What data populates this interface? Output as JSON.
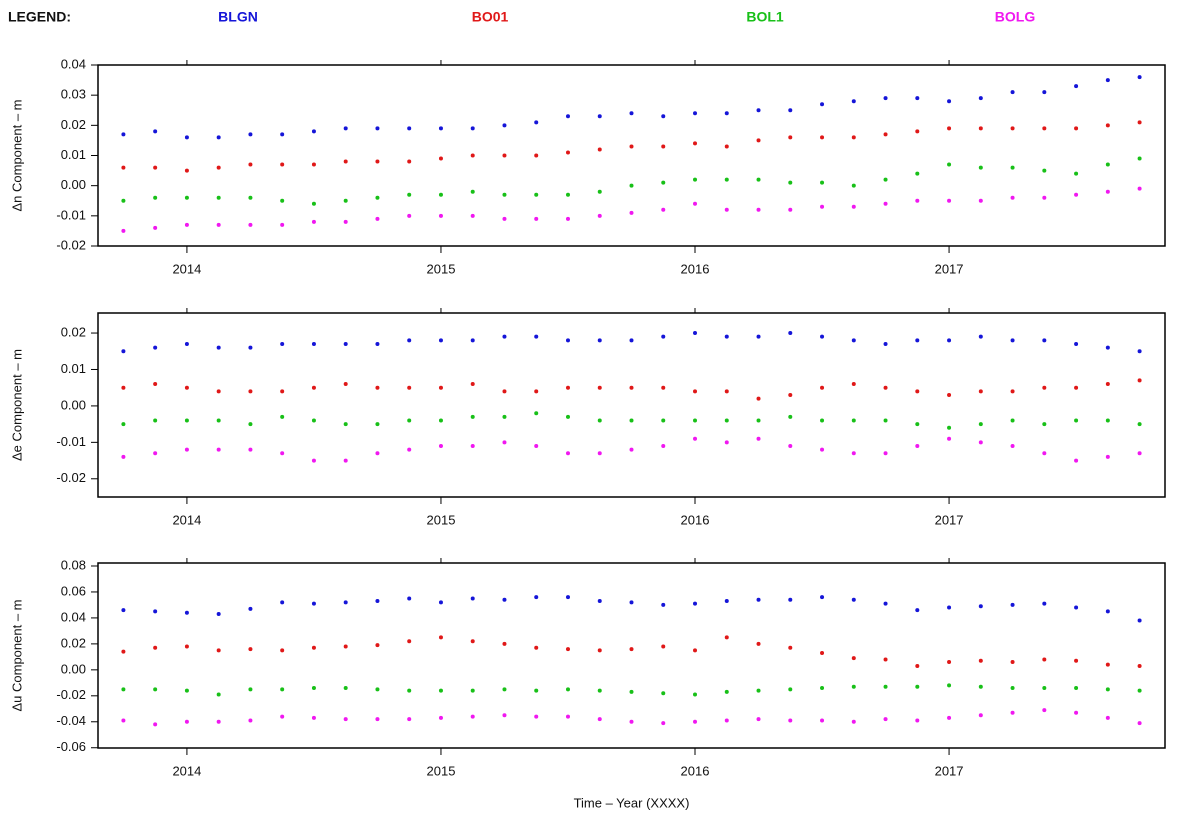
{
  "legend": {
    "title": "LEGEND:"
  },
  "chart_data": [
    {
      "type": "scatter",
      "ylabel": "Δn Component – m",
      "x": [
        2013.75,
        2013.875,
        2014.0,
        2014.125,
        2014.25,
        2014.375,
        2014.5,
        2014.625,
        2014.75,
        2014.875,
        2015.0,
        2015.125,
        2015.25,
        2015.375,
        2015.5,
        2015.625,
        2015.75,
        2015.875,
        2016.0,
        2016.125,
        2016.25,
        2016.375,
        2016.5,
        2016.625,
        2016.75,
        2016.875,
        2017.0,
        2017.125,
        2017.25,
        2017.375,
        2017.5,
        2017.625,
        2017.75
      ],
      "xlim": [
        2013.65,
        2017.85
      ],
      "xticks": [
        2014,
        2015,
        2016,
        2017
      ],
      "ylim": [
        -0.02,
        0.04
      ],
      "yticks": [
        0.04,
        0.03,
        0.02,
        0.01,
        {
          "value": 0,
          "label": "0.00"
        },
        -0.01,
        -0.02
      ],
      "series": [
        {
          "name": "BLGN",
          "color": "#1515d8",
          "values": [
            0.017,
            0.018,
            0.016,
            0.016,
            0.017,
            0.017,
            0.018,
            0.019,
            0.019,
            0.019,
            0.019,
            0.019,
            0.02,
            0.021,
            0.023,
            0.023,
            0.024,
            0.023,
            0.024,
            0.024,
            0.025,
            0.025,
            0.027,
            0.028,
            0.029,
            0.029,
            0.028,
            0.029,
            0.031,
            0.031,
            0.033,
            0.035,
            0.036
          ]
        },
        {
          "name": "BO01",
          "color": "#e01818",
          "values": [
            0.006,
            0.006,
            0.005,
            0.006,
            0.007,
            0.007,
            0.007,
            0.008,
            0.008,
            0.008,
            0.009,
            0.01,
            0.01,
            0.01,
            0.011,
            0.012,
            0.013,
            0.013,
            0.014,
            0.013,
            0.015,
            0.016,
            0.016,
            0.016,
            0.017,
            0.018,
            0.019,
            0.019,
            0.019,
            0.019,
            0.019,
            0.02,
            0.021
          ]
        },
        {
          "name": "BOL1",
          "color": "#18c018",
          "values": [
            -0.005,
            -0.004,
            -0.004,
            -0.004,
            -0.004,
            -0.005,
            -0.006,
            -0.005,
            -0.004,
            -0.003,
            -0.003,
            -0.002,
            -0.003,
            -0.003,
            -0.003,
            -0.002,
            0.0,
            0.001,
            0.002,
            0.002,
            0.002,
            0.001,
            0.001,
            0.0,
            0.002,
            0.004,
            0.007,
            0.006,
            0.006,
            0.005,
            0.004,
            0.007,
            0.009
          ]
        },
        {
          "name": "BOLG",
          "color": "#f018f0",
          "values": [
            -0.015,
            -0.014,
            -0.013,
            -0.013,
            -0.013,
            -0.013,
            -0.012,
            -0.012,
            -0.011,
            -0.01,
            -0.01,
            -0.01,
            -0.011,
            -0.011,
            -0.011,
            -0.01,
            -0.009,
            -0.008,
            -0.006,
            -0.008,
            -0.008,
            -0.008,
            -0.007,
            -0.007,
            -0.006,
            -0.005,
            -0.005,
            -0.005,
            -0.004,
            -0.004,
            -0.003,
            -0.002,
            -0.001
          ]
        }
      ]
    },
    {
      "type": "scatter",
      "ylabel": "Δe Component – m",
      "x": [
        2013.75,
        2013.875,
        2014.0,
        2014.125,
        2014.25,
        2014.375,
        2014.5,
        2014.625,
        2014.75,
        2014.875,
        2015.0,
        2015.125,
        2015.25,
        2015.375,
        2015.5,
        2015.625,
        2015.75,
        2015.875,
        2016.0,
        2016.125,
        2016.25,
        2016.375,
        2016.5,
        2016.625,
        2016.75,
        2016.875,
        2017.0,
        2017.125,
        2017.25,
        2017.375,
        2017.5,
        2017.625,
        2017.75
      ],
      "xlim": [
        2013.65,
        2017.85
      ],
      "xticks": [
        2014,
        2015,
        2016,
        2017
      ],
      "ylim": [
        -0.025,
        0.0255
      ],
      "yticks": [
        0.02,
        0.01,
        {
          "value": 0,
          "label": "0.00"
        },
        -0.01,
        -0.02
      ],
      "series": [
        {
          "color": "#1515d8",
          "values": [
            0.015,
            0.016,
            0.017,
            0.016,
            0.016,
            0.017,
            0.017,
            0.017,
            0.017,
            0.018,
            0.018,
            0.018,
            0.019,
            0.019,
            0.018,
            0.018,
            0.018,
            0.019,
            0.02,
            0.019,
            0.019,
            0.02,
            0.019,
            0.018,
            0.017,
            0.018,
            0.018,
            0.019,
            0.018,
            0.018,
            0.017,
            0.016,
            0.015
          ]
        },
        {
          "color": "#e01818",
          "values": [
            0.005,
            0.006,
            0.005,
            0.004,
            0.004,
            0.004,
            0.005,
            0.006,
            0.005,
            0.005,
            0.005,
            0.006,
            0.004,
            0.004,
            0.005,
            0.005,
            0.005,
            0.005,
            0.004,
            0.004,
            0.002,
            0.003,
            0.005,
            0.006,
            0.005,
            0.004,
            0.003,
            0.004,
            0.004,
            0.005,
            0.005,
            0.006,
            0.007
          ]
        },
        {
          "color": "#18c018",
          "values": [
            -0.005,
            -0.004,
            -0.004,
            -0.004,
            -0.005,
            -0.003,
            -0.004,
            -0.005,
            -0.005,
            -0.004,
            -0.004,
            -0.003,
            -0.003,
            -0.002,
            -0.003,
            -0.004,
            -0.004,
            -0.004,
            -0.004,
            -0.004,
            -0.004,
            -0.003,
            -0.004,
            -0.004,
            -0.004,
            -0.005,
            -0.006,
            -0.005,
            -0.004,
            -0.005,
            -0.004,
            -0.004,
            -0.005
          ]
        },
        {
          "color": "#f018f0",
          "values": [
            -0.014,
            -0.013,
            -0.012,
            -0.012,
            -0.012,
            -0.013,
            -0.015,
            -0.015,
            -0.013,
            -0.012,
            -0.011,
            -0.011,
            -0.01,
            -0.011,
            -0.013,
            -0.013,
            -0.012,
            -0.011,
            -0.009,
            -0.01,
            -0.009,
            -0.011,
            -0.012,
            -0.013,
            -0.013,
            -0.011,
            -0.009,
            -0.01,
            -0.011,
            -0.013,
            -0.015,
            -0.014,
            -0.013
          ]
        }
      ]
    },
    {
      "type": "scatter",
      "ylabel": "Δu Component – m",
      "xlabel": "Time – Year (XXXX)",
      "x": [
        2013.75,
        2013.875,
        2014.0,
        2014.125,
        2014.25,
        2014.375,
        2014.5,
        2014.625,
        2014.75,
        2014.875,
        2015.0,
        2015.125,
        2015.25,
        2015.375,
        2015.5,
        2015.625,
        2015.75,
        2015.875,
        2016.0,
        2016.125,
        2016.25,
        2016.375,
        2016.5,
        2016.625,
        2016.75,
        2016.875,
        2017.0,
        2017.125,
        2017.25,
        2017.375,
        2017.5,
        2017.625,
        2017.75
      ],
      "xlim": [
        2013.65,
        2017.85
      ],
      "xticks": [
        2014,
        2015,
        2016,
        2017
      ],
      "ylim": [
        -0.0602,
        0.0823
      ],
      "yticks": [
        {
          "value": 0.08,
          "label": "0.08"
        },
        0.06,
        0.04,
        0.02,
        {
          "value": 0,
          "label": "0.00"
        },
        -0.02,
        -0.04,
        -0.06
      ],
      "series": [
        {
          "color": "#1515d8",
          "values": [
            0.046,
            0.045,
            0.044,
            0.043,
            0.047,
            0.052,
            0.051,
            0.052,
            0.053,
            0.055,
            0.052,
            0.055,
            0.054,
            0.056,
            0.056,
            0.053,
            0.052,
            0.05,
            0.051,
            0.053,
            0.054,
            0.054,
            0.056,
            0.054,
            0.051,
            0.046,
            0.048,
            0.049,
            0.05,
            0.051,
            0.048,
            0.045,
            0.038
          ]
        },
        {
          "color": "#e01818",
          "values": [
            0.014,
            0.017,
            0.018,
            0.015,
            0.016,
            0.015,
            0.017,
            0.018,
            0.019,
            0.022,
            0.025,
            0.022,
            0.02,
            0.017,
            0.016,
            0.015,
            0.016,
            0.018,
            0.015,
            0.025,
            0.02,
            0.017,
            0.013,
            0.009,
            0.008,
            0.003,
            0.006,
            0.007,
            0.006,
            0.008,
            0.007,
            0.004,
            0.003
          ]
        },
        {
          "color": "#18c018",
          "values": [
            -0.015,
            -0.015,
            -0.016,
            -0.019,
            -0.015,
            -0.015,
            -0.014,
            -0.014,
            -0.015,
            -0.016,
            -0.016,
            -0.016,
            -0.015,
            -0.016,
            -0.015,
            -0.016,
            -0.017,
            -0.018,
            -0.019,
            -0.017,
            -0.016,
            -0.015,
            -0.014,
            -0.013,
            -0.013,
            -0.013,
            -0.012,
            -0.013,
            -0.014,
            -0.014,
            -0.014,
            -0.015,
            -0.016
          ]
        },
        {
          "color": "#f018f0",
          "values": [
            -0.039,
            -0.042,
            -0.04,
            -0.04,
            -0.039,
            -0.036,
            -0.037,
            -0.038,
            -0.038,
            -0.038,
            -0.037,
            -0.036,
            -0.035,
            -0.036,
            -0.036,
            -0.038,
            -0.04,
            -0.041,
            -0.04,
            -0.039,
            -0.038,
            -0.039,
            -0.039,
            -0.04,
            -0.038,
            -0.039,
            -0.037,
            -0.035,
            -0.033,
            -0.031,
            -0.033,
            -0.037,
            -0.041
          ]
        }
      ]
    }
  ]
}
